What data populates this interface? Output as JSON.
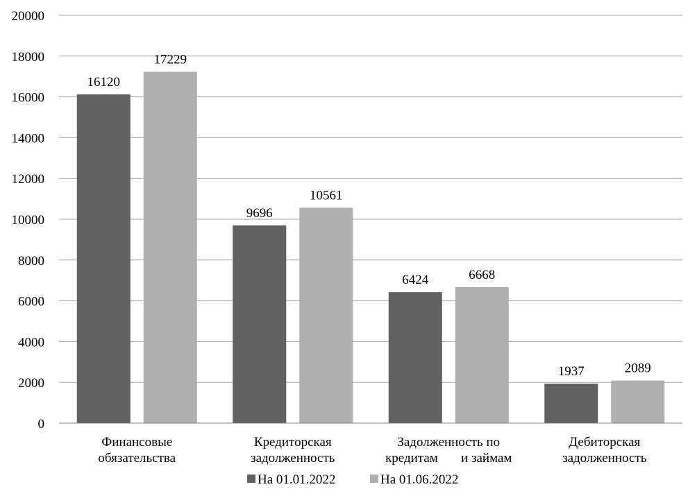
{
  "chart_data": {
    "type": "bar",
    "title": "",
    "xlabel": "",
    "ylabel": "",
    "ylim": [
      0,
      20000
    ],
    "yticks": [
      0,
      2000,
      4000,
      6000,
      8000,
      10000,
      12000,
      14000,
      16000,
      18000,
      20000
    ],
    "grid": true,
    "legend": "bottom",
    "categories": [
      [
        "Финансовые",
        "обязательства"
      ],
      [
        "Кредиторская",
        "задолженность"
      ],
      [
        "Задолженность по",
        "кредитам       и займам"
      ],
      [
        "Дебиторская",
        "задолженность"
      ]
    ],
    "series": [
      {
        "name": "На 01.01.2022",
        "color": "#616161",
        "values": [
          16120,
          9696,
          6424,
          1937
        ]
      },
      {
        "name": "На 01.06.2022",
        "color": "#b0b0b0",
        "values": [
          17229,
          10561,
          6668,
          2089
        ]
      }
    ]
  }
}
